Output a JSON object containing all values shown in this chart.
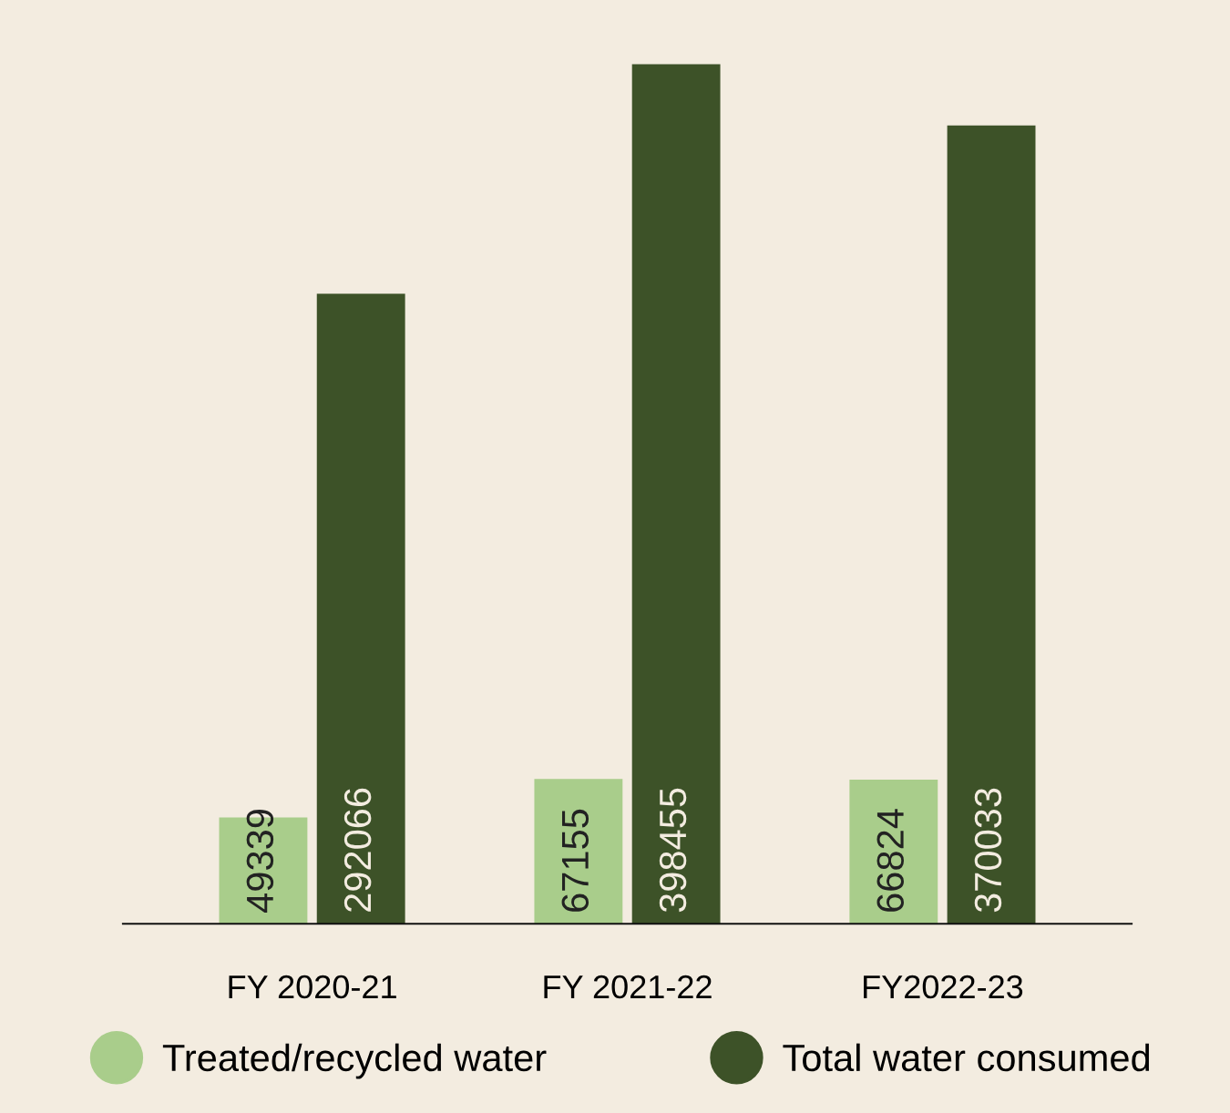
{
  "chart_data": {
    "type": "bar",
    "categories": [
      "FY 2020-21",
      "FY 2021-22",
      "FY2022-23"
    ],
    "series": [
      {
        "name": "Treated/recycled water",
        "color": "#a9cd8b",
        "values": [
          49339,
          67155,
          66824
        ]
      },
      {
        "name": "Total water consumed",
        "color": "#3d5228",
        "values": [
          292066,
          398455,
          370033
        ]
      }
    ],
    "data_labels": true,
    "legend": "bottom",
    "grid": false,
    "tick_labels": "x"
  }
}
